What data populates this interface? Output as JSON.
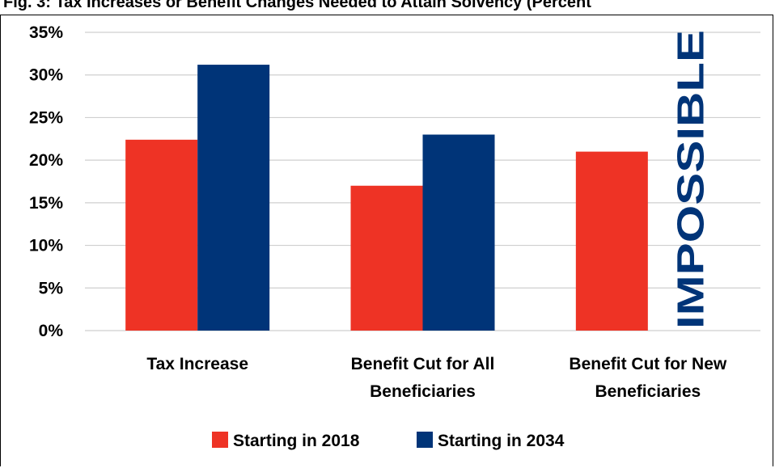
{
  "chart_data": {
    "type": "bar",
    "title": "Fig. 3: Tax Increases or Benefit Changes Needed to Attain Solvency (Percent",
    "categories": [
      [
        "Tax Increase"
      ],
      [
        "Benefit Cut for All",
        "Beneficiaries"
      ],
      [
        "Benefit Cut for New",
        "Beneficiaries"
      ]
    ],
    "series": [
      {
        "name": "Starting in 2018",
        "color": "#ee3325",
        "values": [
          22.4,
          17.0,
          21.0
        ]
      },
      {
        "name": "Starting in 2034",
        "color": "#003478",
        "values": [
          31.2,
          23.0,
          null
        ]
      }
    ],
    "yticks": [
      "0%",
      "5%",
      "10%",
      "15%",
      "20%",
      "25%",
      "30%",
      "35%"
    ],
    "ylim": [
      0,
      35
    ],
    "grid": true,
    "legend": "bottom",
    "annotation": "IMPOSSIBLE"
  }
}
